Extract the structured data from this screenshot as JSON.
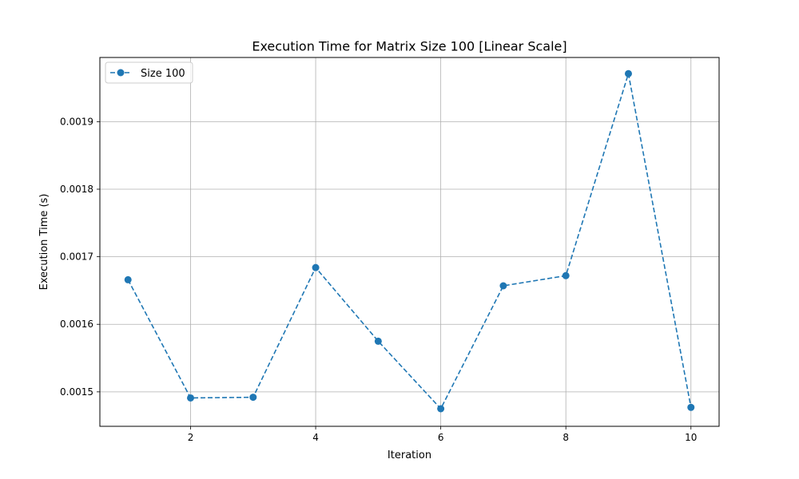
{
  "chart_data": {
    "type": "line",
    "title": "Execution Time for Matrix Size 100 [Linear Scale]",
    "xlabel": "Iteration",
    "ylabel": "Execution Time (s)",
    "xlim": [
      0.55,
      10.45
    ],
    "ylim": [
      0.001449,
      0.001995
    ],
    "x_ticks": [
      2,
      4,
      6,
      8,
      10
    ],
    "x_tick_labels": [
      "2",
      "4",
      "6",
      "8",
      "10"
    ],
    "y_ticks": [
      0.0015,
      0.0016,
      0.0017,
      0.0018,
      0.0019
    ],
    "y_tick_labels": [
      "0.0015",
      "0.0016",
      "0.0017",
      "0.0018",
      "0.0019"
    ],
    "grid": true,
    "legend_position": "upper-left",
    "series": [
      {
        "name": "Size 100",
        "color": "#1f77b4",
        "line_style": "dashed",
        "marker": "circle",
        "x": [
          1,
          2,
          3,
          4,
          5,
          6,
          7,
          8,
          9,
          10
        ],
        "y": [
          0.001666,
          0.001491,
          0.001492,
          0.001684,
          0.001575,
          0.001475,
          0.001657,
          0.001672,
          0.001971,
          0.001477
        ]
      }
    ]
  }
}
